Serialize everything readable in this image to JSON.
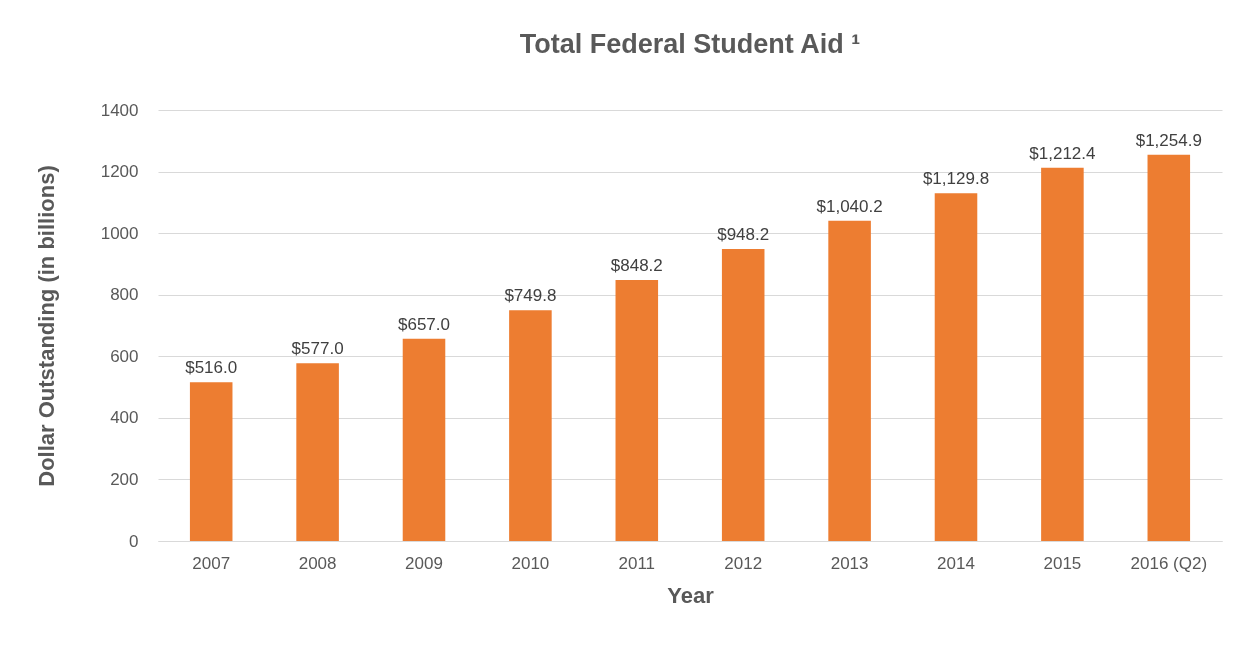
{
  "chart_data": {
    "type": "bar",
    "title": "Total Federal Student Aid ¹",
    "xlabel": "Year",
    "ylabel": "Dollar Outstanding (in billions)",
    "categories": [
      "2007",
      "2008",
      "2009",
      "2010",
      "2011",
      "2012",
      "2013",
      "2014",
      "2015",
      "2016 (Q2)"
    ],
    "values": [
      516.0,
      577.0,
      657.0,
      749.8,
      848.2,
      948.2,
      1040.2,
      1129.8,
      1212.4,
      1254.9
    ],
    "value_labels": [
      "$516.0",
      "$577.0",
      "$657.0",
      "$749.8",
      "$848.2",
      "$948.2",
      "$1,040.2",
      "$1,129.8",
      "$1,212.4",
      "$1,254.9"
    ],
    "color": "#ed7d31",
    "ylim": [
      0,
      1400
    ],
    "yticks": [
      0,
      200,
      400,
      600,
      800,
      1000,
      1200,
      1400
    ],
    "grid": "y"
  }
}
